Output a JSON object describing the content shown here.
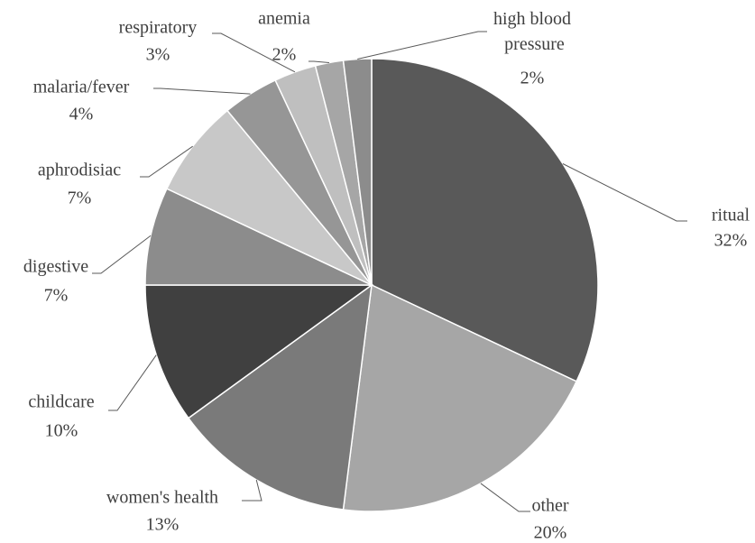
{
  "chart_data": {
    "type": "pie",
    "categories": [
      "ritual",
      "other",
      "women's health",
      "childcare",
      "digestive",
      "aphrodisiac",
      "malaria/fever",
      "respiratory",
      "anemia",
      "high blood pressure"
    ],
    "values": [
      32,
      20,
      13,
      10,
      7,
      7,
      4,
      3,
      2,
      2
    ],
    "value_labels": [
      "32%",
      "20%",
      "13%",
      "10%",
      "7%",
      "7%",
      "4%",
      "3%",
      "2%",
      "2%"
    ],
    "colors": [
      "#595959",
      "#a6a6a6",
      "#7a7a7a",
      "#404040",
      "#8c8c8c",
      "#c8c8c8",
      "#969696",
      "#bfbfbf",
      "#a6a6a6",
      "#8c8c8c"
    ]
  }
}
